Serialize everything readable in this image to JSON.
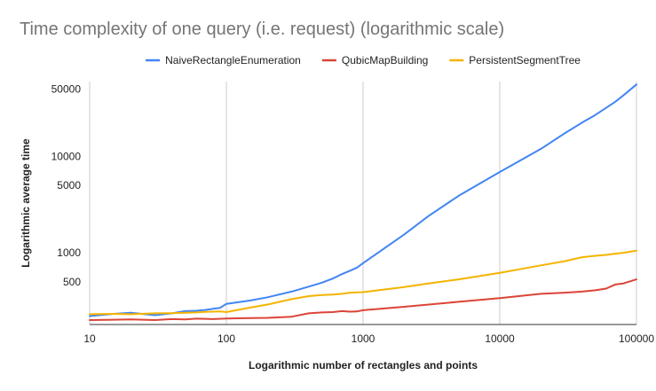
{
  "chart_data": {
    "type": "line",
    "title": "Time complexity of one query (i.e. request) (logarithmic scale)",
    "xlabel": "Logarithmic number of rectangles and points",
    "ylabel": "Logarithmic average time",
    "x_scale": "log",
    "y_scale": "log",
    "xlim": [
      10,
      100000
    ],
    "ylim": [
      180,
      60000
    ],
    "x_ticks": [
      10,
      100,
      1000,
      10000,
      100000
    ],
    "x_tick_labels": [
      "10",
      "100",
      "1000",
      "10000",
      "100000"
    ],
    "y_ticks": [
      500,
      1000,
      5000,
      10000,
      50000
    ],
    "y_tick_labels": [
      "500",
      "1000",
      "5000",
      "10000",
      "50000"
    ],
    "grid": "vertical",
    "legend_position": "top",
    "series": [
      {
        "name": "NaiveRectangleEnumeration",
        "color": "#4285f4",
        "points": [
          [
            10,
            220
          ],
          [
            15,
            232
          ],
          [
            20,
            238
          ],
          [
            30,
            225
          ],
          [
            40,
            235
          ],
          [
            50,
            248
          ],
          [
            60,
            250
          ],
          [
            70,
            255
          ],
          [
            80,
            262
          ],
          [
            90,
            268
          ],
          [
            100,
            295
          ],
          [
            150,
            320
          ],
          [
            200,
            345
          ],
          [
            300,
            395
          ],
          [
            400,
            445
          ],
          [
            500,
            490
          ],
          [
            600,
            540
          ],
          [
            700,
            600
          ],
          [
            800,
            650
          ],
          [
            900,
            700
          ],
          [
            1000,
            780
          ],
          [
            2000,
            1550
          ],
          [
            3000,
            2400
          ],
          [
            5000,
            3900
          ],
          [
            10000,
            6900
          ],
          [
            20000,
            12000
          ],
          [
            30000,
            17500
          ],
          [
            40000,
            22500
          ],
          [
            50000,
            27000
          ],
          [
            70000,
            37000
          ],
          [
            80000,
            43000
          ],
          [
            100000,
            56000
          ]
        ]
      },
      {
        "name": "QubicMapBuilding",
        "color": "#db4437",
        "points": [
          [
            10,
            200
          ],
          [
            15,
            202
          ],
          [
            20,
            203
          ],
          [
            30,
            200
          ],
          [
            40,
            205
          ],
          [
            50,
            203
          ],
          [
            60,
            207
          ],
          [
            70,
            206
          ],
          [
            80,
            205
          ],
          [
            100,
            208
          ],
          [
            150,
            210
          ],
          [
            200,
            211
          ],
          [
            300,
            217
          ],
          [
            400,
            235
          ],
          [
            500,
            240
          ],
          [
            600,
            242
          ],
          [
            700,
            248
          ],
          [
            800,
            245
          ],
          [
            900,
            246
          ],
          [
            1000,
            253
          ],
          [
            2000,
            275
          ],
          [
            5000,
            310
          ],
          [
            10000,
            338
          ],
          [
            20000,
            375
          ],
          [
            30000,
            385
          ],
          [
            40000,
            395
          ],
          [
            50000,
            408
          ],
          [
            60000,
            425
          ],
          [
            70000,
            468
          ],
          [
            80000,
            480
          ],
          [
            100000,
            530
          ]
        ]
      },
      {
        "name": "PersistentSegmentTree",
        "color": "#f4b400",
        "points": [
          [
            10,
            230
          ],
          [
            15,
            232
          ],
          [
            20,
            230
          ],
          [
            30,
            235
          ],
          [
            40,
            236
          ],
          [
            50,
            238
          ],
          [
            60,
            240
          ],
          [
            70,
            243
          ],
          [
            80,
            245
          ],
          [
            90,
            246
          ],
          [
            100,
            242
          ],
          [
            150,
            270
          ],
          [
            200,
            290
          ],
          [
            300,
            330
          ],
          [
            400,
            355
          ],
          [
            500,
            365
          ],
          [
            600,
            368
          ],
          [
            700,
            375
          ],
          [
            800,
            385
          ],
          [
            900,
            388
          ],
          [
            1000,
            390
          ],
          [
            2000,
            440
          ],
          [
            3000,
            480
          ],
          [
            5000,
            530
          ],
          [
            10000,
            620
          ],
          [
            20000,
            740
          ],
          [
            30000,
            820
          ],
          [
            40000,
            900
          ],
          [
            50000,
            930
          ],
          [
            60000,
            950
          ],
          [
            70000,
            980
          ],
          [
            80000,
            1000
          ],
          [
            100000,
            1050
          ]
        ]
      }
    ]
  }
}
